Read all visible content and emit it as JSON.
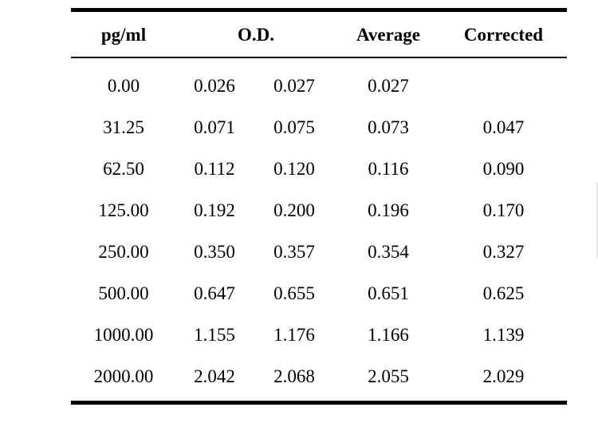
{
  "table": {
    "headers": {
      "concentration": "pg/ml",
      "od": "O.D.",
      "average": "Average",
      "corrected": "Corrected"
    },
    "rows": [
      {
        "concentration": "0.00",
        "od1": "0.026",
        "od2": "0.027",
        "average": "0.027",
        "corrected": ""
      },
      {
        "concentration": "31.25",
        "od1": "0.071",
        "od2": "0.075",
        "average": "0.073",
        "corrected": "0.047"
      },
      {
        "concentration": "62.50",
        "od1": "0.112",
        "od2": "0.120",
        "average": "0.116",
        "corrected": "0.090"
      },
      {
        "concentration": "125.00",
        "od1": "0.192",
        "od2": "0.200",
        "average": "0.196",
        "corrected": "0.170"
      },
      {
        "concentration": "250.00",
        "od1": "0.350",
        "od2": "0.357",
        "average": "0.354",
        "corrected": "0.327"
      },
      {
        "concentration": "500.00",
        "od1": "0.647",
        "od2": "0.655",
        "average": "0.651",
        "corrected": "0.625"
      },
      {
        "concentration": "1000.00",
        "od1": "1.155",
        "od2": "1.176",
        "average": "1.166",
        "corrected": "1.139"
      },
      {
        "concentration": "2000.00",
        "od1": "2.042",
        "od2": "2.068",
        "average": "2.055",
        "corrected": "2.029"
      }
    ]
  }
}
